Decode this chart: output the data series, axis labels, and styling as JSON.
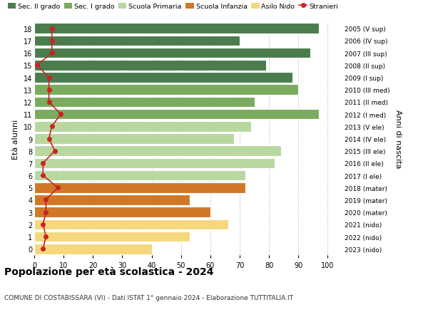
{
  "ages": [
    18,
    17,
    16,
    15,
    14,
    13,
    12,
    11,
    10,
    9,
    8,
    7,
    6,
    5,
    4,
    3,
    2,
    1,
    0
  ],
  "right_labels": [
    "2005 (V sup)",
    "2006 (IV sup)",
    "2007 (III sup)",
    "2008 (II sup)",
    "2009 (I sup)",
    "2010 (III med)",
    "2011 (II med)",
    "2012 (I med)",
    "2013 (V ele)",
    "2014 (IV ele)",
    "2015 (III ele)",
    "2016 (II ele)",
    "2017 (I ele)",
    "2018 (mater)",
    "2019 (mater)",
    "2020 (mater)",
    "2021 (nido)",
    "2022 (nido)",
    "2023 (nido)"
  ],
  "bar_values": [
    97,
    70,
    94,
    79,
    88,
    90,
    75,
    97,
    74,
    68,
    84,
    82,
    72,
    72,
    53,
    60,
    66,
    53,
    40
  ],
  "bar_colors": [
    "#4a7c4e",
    "#4a7c4e",
    "#4a7c4e",
    "#4a7c4e",
    "#4a7c4e",
    "#7aab5e",
    "#7aab5e",
    "#7aab5e",
    "#b8d8a0",
    "#b8d8a0",
    "#b8d8a0",
    "#b8d8a0",
    "#b8d8a0",
    "#d07828",
    "#d07828",
    "#d07828",
    "#f5d87e",
    "#f5d87e",
    "#f5d87e"
  ],
  "stranieri_values": [
    6,
    6,
    6,
    1,
    5,
    5,
    5,
    9,
    6,
    5,
    7,
    3,
    3,
    8,
    4,
    4,
    3,
    4,
    3
  ],
  "legend_labels": [
    "Sec. II grado",
    "Sec. I grado",
    "Scuola Primaria",
    "Scuola Infanzia",
    "Asilo Nido",
    "Stranieri"
  ],
  "legend_colors": [
    "#4a7c4e",
    "#7aab5e",
    "#b8d8a0",
    "#d07828",
    "#f5d87e",
    "#cc2222"
  ],
  "ylabel_left": "Età alunni",
  "ylabel_right": "Anni di nascita",
  "title": "Popolazione per età scolastica - 2024",
  "subtitle": "COMUNE DI COSTABISSARA (VI) - Dati ISTAT 1° gennaio 2024 - Elaborazione TUTTITALIA.IT",
  "xlim": [
    0,
    105
  ],
  "xticks": [
    0,
    10,
    20,
    30,
    40,
    50,
    60,
    70,
    80,
    90,
    100
  ],
  "bar_edge_color": "#ffffff",
  "grid_color": "#cccccc"
}
